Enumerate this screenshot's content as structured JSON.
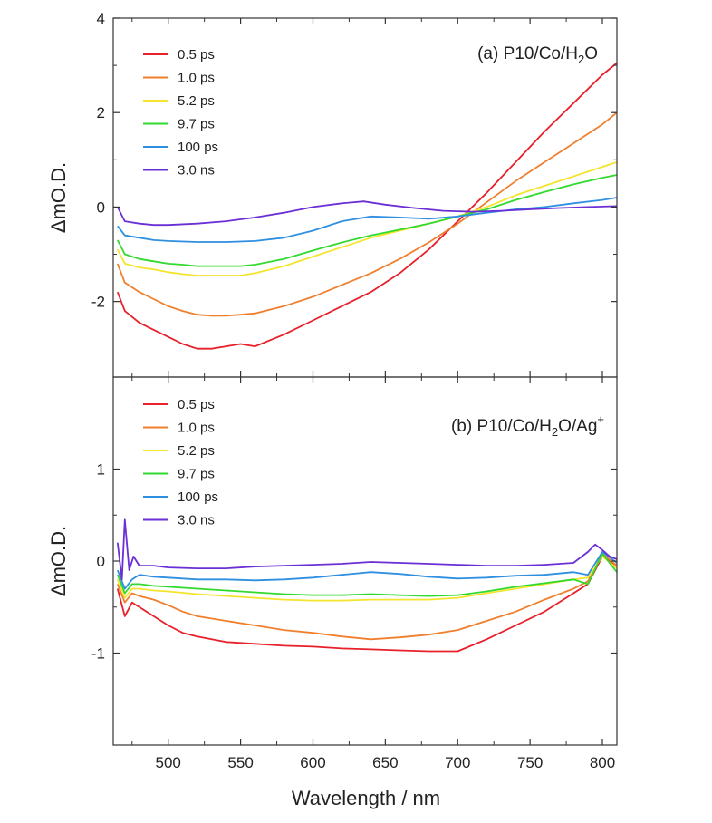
{
  "chart_data": [
    {
      "type": "line",
      "panel": "a",
      "title": "(a) P10/Co/H₂O",
      "title_main": "(a) P10/Co/H",
      "title_sub": "2",
      "title_tail": "O",
      "xlabel": "Wavelength / nm",
      "ylabel": "ΔmO.D.",
      "xlim": [
        462,
        810
      ],
      "ylim": [
        -3.6,
        4
      ],
      "yticks": [
        -2,
        0,
        2,
        4
      ],
      "yticks_labels": [
        "-2",
        "0",
        "2",
        "4"
      ],
      "legend_position": "top-left",
      "series": [
        {
          "name": "0.5 ps",
          "color": "#e8202a",
          "x": [
            465,
            470,
            480,
            490,
            500,
            510,
            520,
            530,
            540,
            550,
            560,
            580,
            600,
            620,
            640,
            660,
            680,
            700,
            720,
            740,
            760,
            780,
            800,
            810
          ],
          "y": [
            -1.8,
            -2.2,
            -2.45,
            -2.6,
            -2.75,
            -2.9,
            -3.0,
            -3.0,
            -2.95,
            -2.9,
            -2.95,
            -2.7,
            -2.4,
            -2.1,
            -1.8,
            -1.4,
            -0.9,
            -0.3,
            0.3,
            0.95,
            1.6,
            2.2,
            2.8,
            3.05
          ]
        },
        {
          "name": "1.0 ps",
          "color": "#f07f2d",
          "x": [
            465,
            470,
            480,
            490,
            500,
            510,
            520,
            530,
            540,
            550,
            560,
            580,
            600,
            620,
            640,
            660,
            680,
            700,
            720,
            740,
            760,
            780,
            800,
            810
          ],
          "y": [
            -1.2,
            -1.6,
            -1.8,
            -1.95,
            -2.1,
            -2.2,
            -2.28,
            -2.3,
            -2.3,
            -2.28,
            -2.25,
            -2.1,
            -1.9,
            -1.65,
            -1.4,
            -1.1,
            -0.75,
            -0.35,
            0.1,
            0.55,
            0.95,
            1.35,
            1.75,
            2.0
          ]
        },
        {
          "name": "5.2 ps",
          "color": "#f4e42e",
          "x": [
            465,
            470,
            480,
            490,
            500,
            510,
            520,
            530,
            540,
            550,
            560,
            580,
            600,
            620,
            640,
            660,
            680,
            700,
            720,
            740,
            760,
            780,
            800,
            810
          ],
          "y": [
            -0.9,
            -1.2,
            -1.28,
            -1.32,
            -1.38,
            -1.42,
            -1.45,
            -1.45,
            -1.45,
            -1.45,
            -1.4,
            -1.25,
            -1.05,
            -0.85,
            -0.65,
            -0.5,
            -0.35,
            -0.2,
            0.0,
            0.25,
            0.45,
            0.65,
            0.85,
            0.95
          ]
        },
        {
          "name": "9.7 ps",
          "color": "#32d92e",
          "x": [
            465,
            470,
            480,
            490,
            500,
            510,
            520,
            530,
            540,
            550,
            560,
            580,
            600,
            620,
            640,
            660,
            680,
            700,
            720,
            740,
            760,
            780,
            800,
            810
          ],
          "y": [
            -0.7,
            -1.0,
            -1.1,
            -1.15,
            -1.2,
            -1.22,
            -1.25,
            -1.25,
            -1.25,
            -1.25,
            -1.22,
            -1.1,
            -0.92,
            -0.75,
            -0.6,
            -0.48,
            -0.35,
            -0.2,
            -0.05,
            0.15,
            0.32,
            0.48,
            0.62,
            0.68
          ]
        },
        {
          "name": "100 ps",
          "color": "#2f8fe0",
          "x": [
            465,
            470,
            480,
            490,
            500,
            520,
            540,
            560,
            580,
            600,
            620,
            640,
            660,
            680,
            700,
            720,
            740,
            760,
            780,
            800,
            810
          ],
          "y": [
            -0.4,
            -0.6,
            -0.65,
            -0.7,
            -0.72,
            -0.74,
            -0.74,
            -0.72,
            -0.65,
            -0.5,
            -0.3,
            -0.2,
            -0.22,
            -0.25,
            -0.2,
            -0.12,
            -0.05,
            0.0,
            0.08,
            0.15,
            0.2
          ]
        },
        {
          "name": "3.0 ns",
          "color": "#6b2fd6",
          "x": [
            465,
            470,
            480,
            490,
            500,
            520,
            540,
            560,
            580,
            600,
            620,
            635,
            650,
            670,
            690,
            710,
            730,
            750,
            770,
            790,
            810
          ],
          "y": [
            0.0,
            -0.3,
            -0.35,
            -0.38,
            -0.38,
            -0.35,
            -0.3,
            -0.22,
            -0.12,
            0.0,
            0.08,
            0.12,
            0.05,
            -0.02,
            -0.08,
            -0.1,
            -0.08,
            -0.05,
            -0.02,
            0.0,
            0.02
          ]
        }
      ]
    },
    {
      "type": "line",
      "panel": "b",
      "title": "(b) P10/Co/H₂O/Ag⁺",
      "title_main": "(b) P10/Co/H",
      "title_sub": "2",
      "title_tail": "O/Ag",
      "title_sup": "+",
      "xlabel": "Wavelength / nm",
      "ylabel": "ΔmO.D.",
      "xlim": [
        462,
        810
      ],
      "ylim": [
        -2,
        2
      ],
      "yticks": [
        -1,
        0,
        1
      ],
      "yticks_labels": [
        "-1",
        "0",
        "1"
      ],
      "xticks": [
        500,
        550,
        600,
        650,
        700,
        750,
        800
      ],
      "xticks_labels": [
        "500",
        "550",
        "600",
        "650",
        "700",
        "750",
        "800"
      ],
      "legend_position": "top-left",
      "series": [
        {
          "name": "0.5 ps",
          "color": "#e8202a",
          "x": [
            465,
            470,
            475,
            480,
            490,
            500,
            510,
            520,
            540,
            560,
            580,
            600,
            620,
            640,
            660,
            680,
            700,
            720,
            740,
            760,
            780,
            790,
            800,
            810
          ],
          "y": [
            -0.3,
            -0.6,
            -0.45,
            -0.5,
            -0.6,
            -0.7,
            -0.78,
            -0.82,
            -0.88,
            -0.9,
            -0.92,
            -0.93,
            -0.95,
            -0.96,
            -0.97,
            -0.98,
            -0.98,
            -0.85,
            -0.7,
            -0.55,
            -0.35,
            -0.25,
            0.05,
            -0.05
          ]
        },
        {
          "name": "1.0 ps",
          "color": "#f07f2d",
          "x": [
            465,
            470,
            475,
            480,
            490,
            500,
            510,
            520,
            540,
            560,
            580,
            600,
            620,
            640,
            660,
            680,
            700,
            720,
            740,
            760,
            780,
            790,
            800,
            810
          ],
          "y": [
            -0.25,
            -0.45,
            -0.35,
            -0.38,
            -0.42,
            -0.48,
            -0.55,
            -0.6,
            -0.65,
            -0.7,
            -0.75,
            -0.78,
            -0.82,
            -0.85,
            -0.83,
            -0.8,
            -0.75,
            -0.65,
            -0.55,
            -0.42,
            -0.3,
            -0.22,
            0.08,
            -0.05
          ]
        },
        {
          "name": "5.2 ps",
          "color": "#f4e42e",
          "x": [
            465,
            470,
            475,
            480,
            490,
            500,
            520,
            540,
            560,
            580,
            600,
            620,
            640,
            660,
            680,
            700,
            720,
            740,
            760,
            780,
            790,
            800,
            810
          ],
          "y": [
            -0.2,
            -0.4,
            -0.3,
            -0.3,
            -0.32,
            -0.33,
            -0.36,
            -0.38,
            -0.4,
            -0.42,
            -0.43,
            -0.43,
            -0.42,
            -0.42,
            -0.42,
            -0.4,
            -0.35,
            -0.3,
            -0.25,
            -0.2,
            -0.18,
            0.05,
            -0.08
          ]
        },
        {
          "name": "9.7 ps",
          "color": "#32d92e",
          "x": [
            465,
            470,
            475,
            480,
            490,
            500,
            520,
            540,
            560,
            580,
            600,
            620,
            640,
            660,
            680,
            700,
            720,
            740,
            760,
            780,
            790,
            800,
            810
          ],
          "y": [
            -0.15,
            -0.35,
            -0.25,
            -0.25,
            -0.27,
            -0.28,
            -0.3,
            -0.32,
            -0.34,
            -0.36,
            -0.37,
            -0.37,
            -0.36,
            -0.37,
            -0.38,
            -0.37,
            -0.33,
            -0.28,
            -0.24,
            -0.2,
            -0.25,
            0.08,
            -0.12
          ]
        },
        {
          "name": "100 ps",
          "color": "#2f8fe0",
          "x": [
            465,
            470,
            475,
            480,
            490,
            500,
            520,
            540,
            560,
            580,
            600,
            620,
            640,
            660,
            680,
            700,
            720,
            740,
            760,
            780,
            790,
            800,
            810
          ],
          "y": [
            -0.1,
            -0.3,
            -0.2,
            -0.15,
            -0.17,
            -0.18,
            -0.2,
            -0.2,
            -0.21,
            -0.2,
            -0.18,
            -0.15,
            -0.12,
            -0.14,
            -0.17,
            -0.19,
            -0.18,
            -0.16,
            -0.15,
            -0.12,
            -0.15,
            0.1,
            -0.02
          ]
        },
        {
          "name": "3.0 ns",
          "color": "#6b2fd6",
          "x": [
            465,
            468,
            470,
            473,
            476,
            480,
            490,
            500,
            520,
            540,
            560,
            580,
            600,
            620,
            640,
            660,
            680,
            700,
            720,
            740,
            760,
            780,
            790,
            795,
            800,
            805,
            810
          ],
          "y": [
            0.2,
            -0.2,
            0.45,
            -0.1,
            0.05,
            -0.05,
            -0.05,
            -0.07,
            -0.08,
            -0.08,
            -0.06,
            -0.05,
            -0.04,
            -0.03,
            -0.01,
            -0.02,
            -0.03,
            -0.04,
            -0.05,
            -0.05,
            -0.04,
            -0.02,
            0.1,
            0.18,
            0.12,
            0.05,
            0.02
          ]
        }
      ]
    }
  ]
}
